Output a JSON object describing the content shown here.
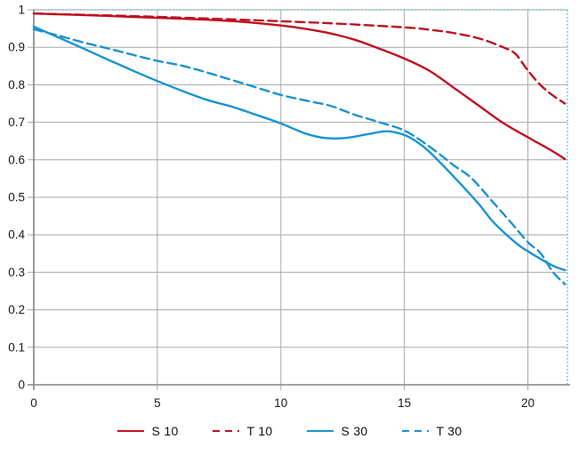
{
  "chart_data": {
    "type": "line",
    "title": "",
    "xlabel": "",
    "ylabel": "",
    "xlim": [
      0,
      21.6
    ],
    "ylim": [
      0,
      1
    ],
    "grid": true,
    "x_tick_values": [
      0,
      5,
      10,
      15,
      20
    ],
    "x_tick_labels": [
      "0",
      "5",
      "10",
      "15",
      "20"
    ],
    "y_tick_values": [
      1,
      0.9,
      0.8,
      0.7,
      0.6,
      0.5,
      0.4,
      0.3,
      0.2,
      0.1,
      0
    ],
    "y_tick_labels": [
      "1",
      "0.9",
      "0.8",
      "0.7",
      "0.6",
      "0.5",
      "0.4",
      "0.3",
      "0.2",
      "0.1",
      "0"
    ],
    "legend_position": "bottom",
    "colors": {
      "red": "#c01020",
      "blue": "#1a93d2",
      "grid": "#a8a8a8",
      "axis": "#848484",
      "plot_border_dotted": "#6fbde4",
      "text": "#1a1a1a",
      "background": "#ffffff"
    },
    "series": [
      {
        "name": "S 10",
        "color": "#c01020",
        "dash": "solid",
        "points": [
          [
            0,
            0.99
          ],
          [
            2,
            0.986
          ],
          [
            4,
            0.981
          ],
          [
            6,
            0.976
          ],
          [
            8,
            0.97
          ],
          [
            10,
            0.958
          ],
          [
            11,
            0.949
          ],
          [
            12,
            0.937
          ],
          [
            13,
            0.92
          ],
          [
            14,
            0.896
          ],
          [
            15,
            0.87
          ],
          [
            16,
            0.838
          ],
          [
            17,
            0.792
          ],
          [
            18,
            0.745
          ],
          [
            19,
            0.698
          ],
          [
            20,
            0.66
          ],
          [
            21,
            0.623
          ],
          [
            21.5,
            0.602
          ]
        ]
      },
      {
        "name": "T 10",
        "color": "#c01020",
        "dash": "dashed",
        "points": [
          [
            0,
            0.99
          ],
          [
            3,
            0.985
          ],
          [
            6,
            0.979
          ],
          [
            9,
            0.972
          ],
          [
            12,
            0.964
          ],
          [
            15,
            0.953
          ],
          [
            16,
            0.947
          ],
          [
            17,
            0.938
          ],
          [
            18,
            0.924
          ],
          [
            19,
            0.9
          ],
          [
            19.5,
            0.882
          ],
          [
            20,
            0.838
          ],
          [
            20.5,
            0.8
          ],
          [
            21,
            0.772
          ],
          [
            21.5,
            0.75
          ]
        ]
      },
      {
        "name": "S 30",
        "color": "#1a93d2",
        "dash": "solid",
        "points": [
          [
            0,
            0.955
          ],
          [
            1,
            0.926
          ],
          [
            2,
            0.897
          ],
          [
            3,
            0.867
          ],
          [
            4,
            0.838
          ],
          [
            5,
            0.81
          ],
          [
            6,
            0.784
          ],
          [
            7,
            0.76
          ],
          [
            8,
            0.742
          ],
          [
            9,
            0.72
          ],
          [
            10,
            0.697
          ],
          [
            11,
            0.67
          ],
          [
            11.8,
            0.658
          ],
          [
            12.6,
            0.658
          ],
          [
            13.5,
            0.668
          ],
          [
            14.3,
            0.676
          ],
          [
            15,
            0.666
          ],
          [
            15.5,
            0.648
          ],
          [
            16,
            0.622
          ],
          [
            17,
            0.555
          ],
          [
            18,
            0.483
          ],
          [
            18.6,
            0.434
          ],
          [
            19.5,
            0.379
          ],
          [
            20,
            0.356
          ],
          [
            21,
            0.318
          ],
          [
            21.5,
            0.306
          ]
        ]
      },
      {
        "name": "T 30",
        "color": "#1a93d2",
        "dash": "dashed",
        "points": [
          [
            0,
            0.948
          ],
          [
            1,
            0.931
          ],
          [
            2,
            0.913
          ],
          [
            3,
            0.897
          ],
          [
            4,
            0.88
          ],
          [
            5,
            0.864
          ],
          [
            6,
            0.851
          ],
          [
            7,
            0.833
          ],
          [
            8,
            0.813
          ],
          [
            9,
            0.793
          ],
          [
            10,
            0.773
          ],
          [
            11,
            0.758
          ],
          [
            12,
            0.744
          ],
          [
            13,
            0.72
          ],
          [
            14,
            0.7
          ],
          [
            15,
            0.678
          ],
          [
            16,
            0.636
          ],
          [
            17,
            0.585
          ],
          [
            17.7,
            0.552
          ],
          [
            18.6,
            0.486
          ],
          [
            19.3,
            0.434
          ],
          [
            20,
            0.38
          ],
          [
            20.5,
            0.352
          ],
          [
            21,
            0.302
          ],
          [
            21.5,
            0.268
          ]
        ]
      }
    ]
  }
}
